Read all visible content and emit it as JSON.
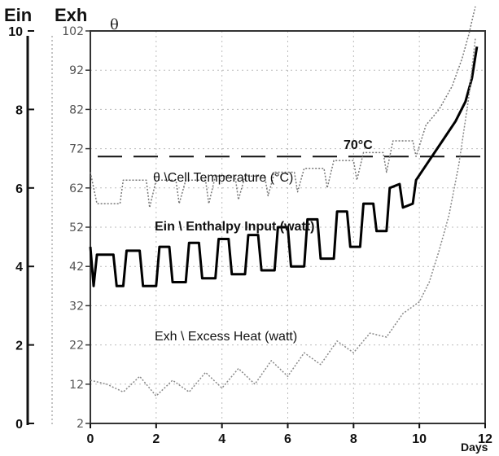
{
  "chart_data": {
    "type": "line",
    "header": {
      "ein": "Ein",
      "exh": "Exh",
      "theta": "θ"
    },
    "x_axis": {
      "label": "Days",
      "ticks": [
        0,
        2,
        4,
        6,
        8,
        10,
        12
      ],
      "tick_labels": [
        "0",
        "2",
        "4",
        "6",
        "8",
        "10",
        "12"
      ],
      "range": [
        0,
        12
      ]
    },
    "y_axes": {
      "ein": {
        "title": "Ein",
        "ticks": [
          0,
          2,
          4,
          6,
          8,
          10
        ],
        "tick_labels": [
          "0",
          "2",
          "4",
          "6",
          "8",
          "10"
        ],
        "range": [
          0,
          10
        ]
      },
      "theta_exh": {
        "title": "Exh",
        "ticks": [
          2,
          12,
          22,
          32,
          42,
          52,
          62,
          72,
          82,
          92,
          102
        ],
        "tick_labels": [
          "2",
          "12",
          "22",
          "32",
          "42",
          "52",
          "62",
          "72",
          "82",
          "92",
          "102"
        ],
        "range": [
          2,
          102
        ]
      }
    },
    "reference_line": {
      "label": "70°C",
      "value": 70
    },
    "grid": true,
    "series": [
      {
        "name": "θ \\Cell Temperature (°C)",
        "axis": "theta_exh",
        "color": "#777777",
        "style": "dotted",
        "points": [
          [
            0.0,
            66
          ],
          [
            0.2,
            58
          ],
          [
            0.9,
            58
          ],
          [
            1.0,
            64
          ],
          [
            1.7,
            64
          ],
          [
            1.8,
            57
          ],
          [
            2.0,
            64
          ],
          [
            2.6,
            64
          ],
          [
            2.7,
            58
          ],
          [
            2.9,
            64
          ],
          [
            3.5,
            64
          ],
          [
            3.6,
            58
          ],
          [
            3.8,
            65
          ],
          [
            4.4,
            65
          ],
          [
            4.5,
            59
          ],
          [
            4.7,
            65
          ],
          [
            5.3,
            65
          ],
          [
            5.4,
            60
          ],
          [
            5.6,
            66
          ],
          [
            6.2,
            66
          ],
          [
            6.3,
            61
          ],
          [
            6.5,
            67
          ],
          [
            7.1,
            67
          ],
          [
            7.2,
            62
          ],
          [
            7.4,
            69
          ],
          [
            8.0,
            69
          ],
          [
            8.1,
            64
          ],
          [
            8.3,
            71
          ],
          [
            8.9,
            71
          ],
          [
            9.0,
            66
          ],
          [
            9.2,
            74
          ],
          [
            9.8,
            74
          ],
          [
            9.9,
            70
          ],
          [
            10.2,
            78
          ],
          [
            10.6,
            82
          ],
          [
            11.0,
            88
          ],
          [
            11.3,
            95
          ],
          [
            11.5,
            101
          ],
          [
            11.7,
            110
          ]
        ]
      },
      {
        "name": "Ein \\ Enthalpy Input (watt)",
        "axis": "ein",
        "color": "#000000",
        "style": "solid",
        "points": [
          [
            0.0,
            4.5
          ],
          [
            0.1,
            3.5
          ],
          [
            0.2,
            4.3
          ],
          [
            0.7,
            4.3
          ],
          [
            0.8,
            3.5
          ],
          [
            1.0,
            3.5
          ],
          [
            1.1,
            4.4
          ],
          [
            1.5,
            4.4
          ],
          [
            1.6,
            3.5
          ],
          [
            2.0,
            3.5
          ],
          [
            2.1,
            4.5
          ],
          [
            2.4,
            4.5
          ],
          [
            2.5,
            3.6
          ],
          [
            2.9,
            3.6
          ],
          [
            3.0,
            4.6
          ],
          [
            3.3,
            4.6
          ],
          [
            3.4,
            3.7
          ],
          [
            3.8,
            3.7
          ],
          [
            3.9,
            4.7
          ],
          [
            4.2,
            4.7
          ],
          [
            4.3,
            3.8
          ],
          [
            4.7,
            3.8
          ],
          [
            4.8,
            4.8
          ],
          [
            5.1,
            4.8
          ],
          [
            5.2,
            3.9
          ],
          [
            5.6,
            3.9
          ],
          [
            5.7,
            5.0
          ],
          [
            6.0,
            5.0
          ],
          [
            6.1,
            4.0
          ],
          [
            6.5,
            4.0
          ],
          [
            6.6,
            5.2
          ],
          [
            6.9,
            5.2
          ],
          [
            7.0,
            4.2
          ],
          [
            7.4,
            4.2
          ],
          [
            7.5,
            5.4
          ],
          [
            7.8,
            5.4
          ],
          [
            7.9,
            4.5
          ],
          [
            8.2,
            4.5
          ],
          [
            8.3,
            5.6
          ],
          [
            8.6,
            5.6
          ],
          [
            8.7,
            4.9
          ],
          [
            9.0,
            4.9
          ],
          [
            9.1,
            6.0
          ],
          [
            9.4,
            6.1
          ],
          [
            9.5,
            5.5
          ],
          [
            9.8,
            5.6
          ],
          [
            9.9,
            6.2
          ],
          [
            10.3,
            6.7
          ],
          [
            10.7,
            7.2
          ],
          [
            11.1,
            7.7
          ],
          [
            11.4,
            8.2
          ],
          [
            11.6,
            8.8
          ],
          [
            11.75,
            9.6
          ]
        ]
      },
      {
        "name": "Exh \\ Excess Heat (watt)",
        "axis": "theta_exh",
        "color": "#888888",
        "style": "dotted",
        "points": [
          [
            0.0,
            13
          ],
          [
            0.5,
            12
          ],
          [
            1.0,
            10
          ],
          [
            1.5,
            14
          ],
          [
            2.0,
            9
          ],
          [
            2.5,
            13
          ],
          [
            3.0,
            10
          ],
          [
            3.5,
            15
          ],
          [
            4.0,
            11
          ],
          [
            4.5,
            16
          ],
          [
            5.0,
            12
          ],
          [
            5.5,
            18
          ],
          [
            6.0,
            14
          ],
          [
            6.5,
            20
          ],
          [
            7.0,
            17
          ],
          [
            7.5,
            23
          ],
          [
            8.0,
            20
          ],
          [
            8.5,
            25
          ],
          [
            9.0,
            24
          ],
          [
            9.5,
            30
          ],
          [
            10.0,
            33
          ],
          [
            10.3,
            38
          ],
          [
            10.6,
            46
          ],
          [
            10.9,
            55
          ],
          [
            11.2,
            68
          ],
          [
            11.5,
            85
          ],
          [
            11.7,
            100
          ]
        ]
      }
    ]
  }
}
